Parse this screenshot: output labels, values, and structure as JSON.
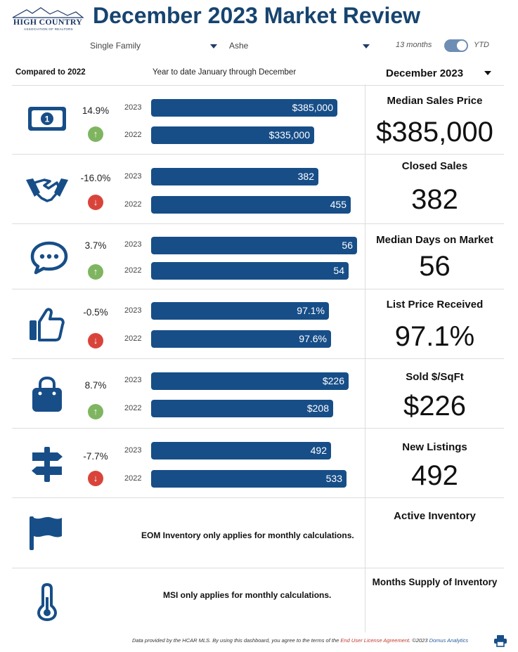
{
  "logo": {
    "name": "HIGH COUNTRY",
    "subtitle": "ASSOCIATION OF REALTORS"
  },
  "title": "December 2023 Market Review",
  "filters": {
    "property_type": "Single Family",
    "area": "Ashe",
    "toggle_left": "13 months",
    "toggle_right": "YTD"
  },
  "header": {
    "compared": "Compared to 2022",
    "range": "Year to date January through December",
    "month": "December 2023"
  },
  "year_current": "2023",
  "year_prior": "2022",
  "metrics": [
    {
      "icon": "money-icon",
      "change": "14.9%",
      "direction": "up",
      "current": "$385,000",
      "prior": "$335,000",
      "current_ratio": 0.87,
      "prior_ratio": 0.76,
      "title": "Median Sales Price",
      "value": "$385,000"
    },
    {
      "icon": "handshake-icon",
      "change": "-16.0%",
      "direction": "down",
      "current": "382",
      "prior": "455",
      "current_ratio": 0.78,
      "prior_ratio": 0.93,
      "title": "Closed Sales",
      "value": "382"
    },
    {
      "icon": "chat-icon",
      "change": "3.7%",
      "direction": "up",
      "current": "56",
      "prior": "54",
      "current_ratio": 0.96,
      "prior_ratio": 0.92,
      "title": "Median Days on Market",
      "value": "56"
    },
    {
      "icon": "thumbs-up-icon",
      "change": "-0.5%",
      "direction": "down",
      "current": "97.1%",
      "prior": "97.6%",
      "current_ratio": 0.83,
      "prior_ratio": 0.84,
      "title": "List Price Received",
      "value": "97.1%"
    },
    {
      "icon": "shopping-bag-icon",
      "change": "8.7%",
      "direction": "up",
      "current": "$226",
      "prior": "$208",
      "current_ratio": 0.92,
      "prior_ratio": 0.85,
      "title": "Sold $/SqFt",
      "value": "$226"
    },
    {
      "icon": "signpost-icon",
      "change": "-7.7%",
      "direction": "down",
      "current": "492",
      "prior": "533",
      "current_ratio": 0.84,
      "prior_ratio": 0.91,
      "title": "New Listings",
      "value": "492"
    }
  ],
  "active_inventory": {
    "title": "Active Inventory",
    "note": "EOM Inventory only applies for monthly calculations."
  },
  "months_supply": {
    "title": "Months Supply of Inventory",
    "note": "MSI only applies for monthly calculations."
  },
  "footer": {
    "text": "Data provided by the HCAR MLS.  By using this dashboard, you agree to the terms of the ",
    "link": "End User License Agreement",
    "copyright": ". ©2023 ",
    "brand": "Domus Analytics"
  },
  "colors": {
    "brand": "#17446f",
    "bar": "#174e88",
    "up": "#7fb560",
    "down": "#d9443a"
  }
}
